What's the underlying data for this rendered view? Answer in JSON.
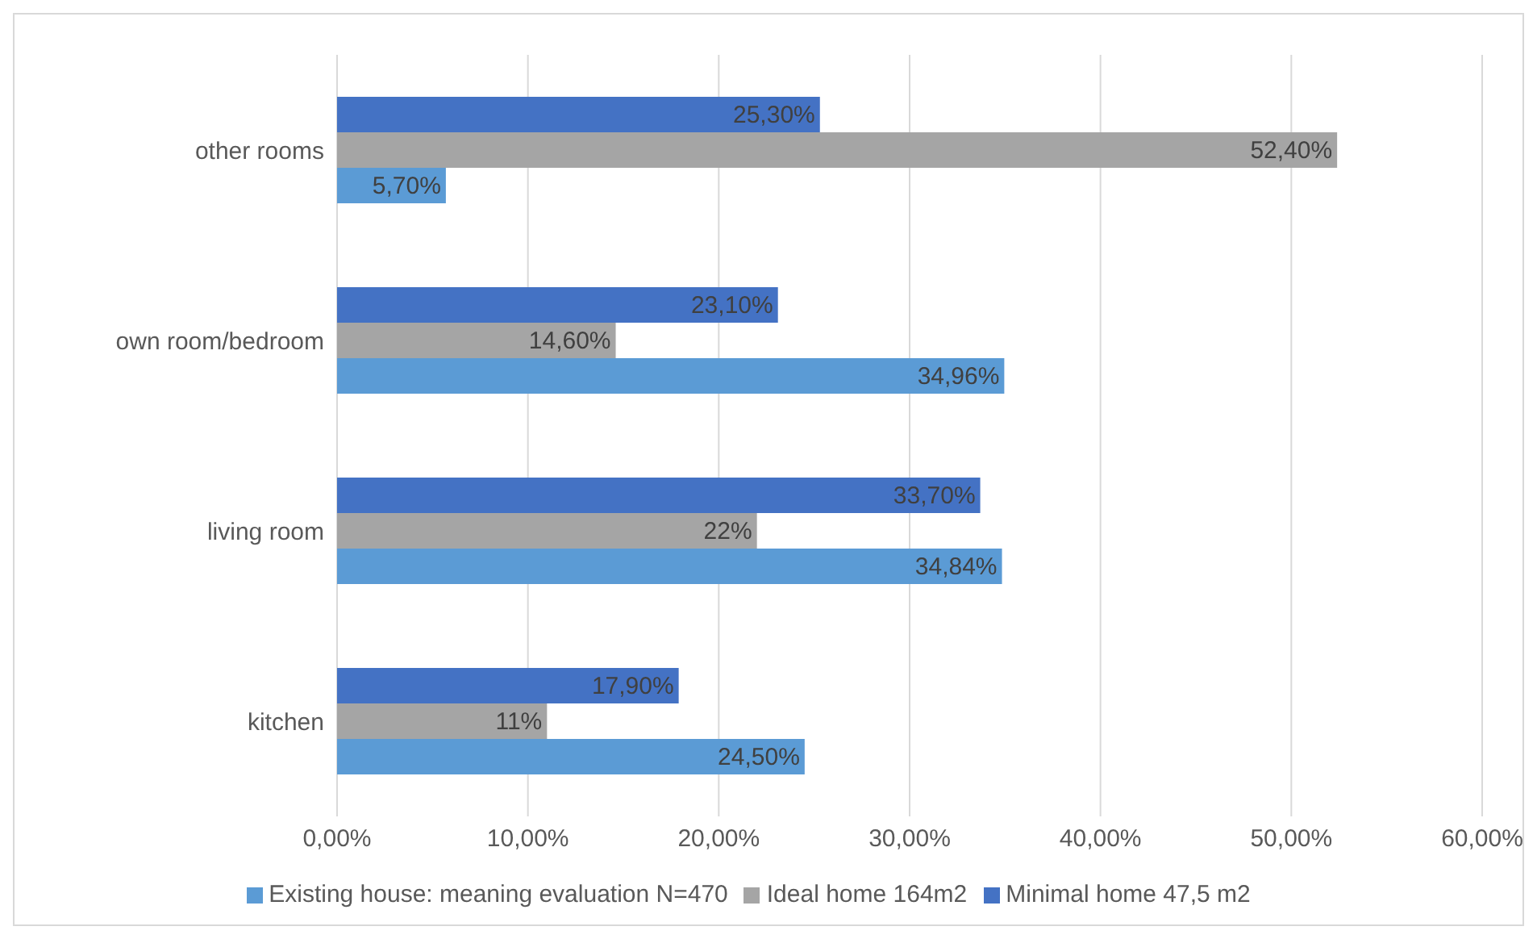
{
  "chart_data": {
    "type": "bar",
    "orientation": "horizontal",
    "categories": [
      "other rooms",
      "own room/bedroom",
      "living room",
      "kitchen"
    ],
    "series": [
      {
        "name": "Minimal home 47,5 m2",
        "color": "#4472c4",
        "values": [
          25.3,
          23.1,
          33.7,
          17.9
        ],
        "value_labels": [
          "25,30%",
          "23,10%",
          "33,70%",
          "17,90%"
        ]
      },
      {
        "name": "Ideal home 164m2",
        "color": "#a5a5a5",
        "values": [
          52.4,
          14.6,
          22,
          11
        ],
        "value_labels": [
          "52,40%",
          "14,60%",
          "22%",
          "11%"
        ]
      },
      {
        "name": "Existing house: meaning evaluation N=470",
        "color": "#5b9bd5",
        "values": [
          5.7,
          34.96,
          34.84,
          24.5
        ],
        "value_labels": [
          "5,70%",
          "34,96%",
          "34,84%",
          "24,50%"
        ]
      }
    ],
    "xlim": [
      0,
      60
    ],
    "xticks": [
      {
        "value": 0,
        "label": "0,00%"
      },
      {
        "value": 10,
        "label": "10,00%"
      },
      {
        "value": 20,
        "label": "20,00%"
      },
      {
        "value": 30,
        "label": "30,00%"
      },
      {
        "value": 40,
        "label": "40,00%"
      },
      {
        "value": 50,
        "label": "50,00%"
      },
      {
        "value": 60,
        "label": "60,00%"
      }
    ],
    "grid": "x",
    "legend": "bottom"
  }
}
